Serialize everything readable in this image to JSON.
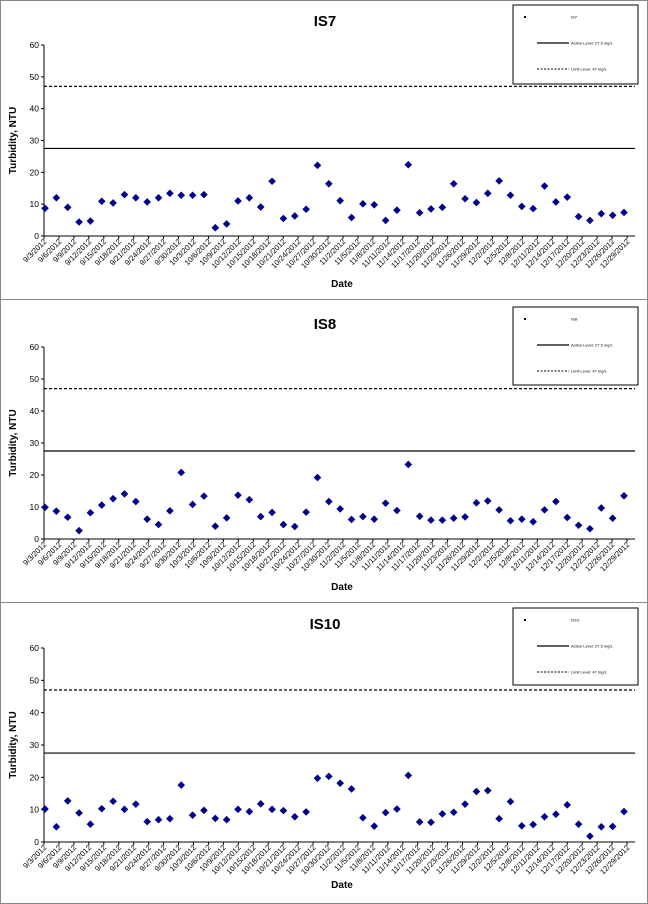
{
  "chart_data": [
    {
      "type": "scatter",
      "title": "IS7",
      "xlabel": "Date",
      "ylabel": "Turbidity, NTU",
      "ylim": [
        0,
        60
      ],
      "yticks": [
        0,
        10,
        20,
        30,
        40,
        50,
        60
      ],
      "x_tick_labels": [
        "9/3/2012",
        "9/6/2012",
        "9/9/2012",
        "9/12/2012",
        "9/15/2012",
        "9/18/2012",
        "9/21/2012",
        "9/24/2012",
        "9/27/2012",
        "9/30/2012",
        "10/3/2012",
        "10/6/2012",
        "10/9/2012",
        "10/12/2012",
        "10/15/2012",
        "10/18/2012",
        "10/21/2012",
        "10/24/2012",
        "10/27/2012",
        "10/30/2012",
        "11/2/2012",
        "11/5/2012",
        "11/8/2012",
        "11/11/2012",
        "11/14/2012",
        "11/17/2012",
        "11/20/2012",
        "11/23/2012",
        "11/26/2012",
        "11/29/2012",
        "12/2/2012",
        "12/5/2012",
        "12/8/2012",
        "12/11/2012",
        "12/14/2012",
        "12/17/2012",
        "12/20/2012",
        "12/23/2012",
        "12/26/2012",
        "12/29/2012"
      ],
      "series": [
        {
          "name": "IS7",
          "marker": "diamond",
          "color": "#00008B",
          "points": [
            [
              0,
              8.7
            ],
            [
              1,
              12
            ],
            [
              2,
              9
            ],
            [
              3,
              4.4
            ],
            [
              4,
              4.7
            ],
            [
              5,
              10.9
            ],
            [
              6,
              10.4
            ],
            [
              7,
              13
            ],
            [
              8,
              12
            ],
            [
              9,
              10.7
            ],
            [
              10,
              12
            ],
            [
              11,
              13.4
            ],
            [
              12,
              12.8
            ],
            [
              13,
              12.8
            ],
            [
              14,
              13
            ],
            [
              15,
              2.6
            ],
            [
              16,
              3.8
            ],
            [
              17,
              11
            ],
            [
              18,
              12
            ],
            [
              19,
              9.1
            ],
            [
              20,
              17.2
            ],
            [
              21,
              5.5
            ],
            [
              22,
              6.3
            ],
            [
              23,
              8.4
            ],
            [
              24,
              22.2
            ],
            [
              25,
              16.4
            ],
            [
              26,
              11.1
            ],
            [
              27,
              5.8
            ],
            [
              28,
              10.1
            ],
            [
              29,
              9.8
            ],
            [
              30,
              4.9
            ],
            [
              31,
              8.1
            ],
            [
              32,
              22.4
            ],
            [
              33,
              7.3
            ],
            [
              34,
              8.5
            ],
            [
              35,
              9
            ],
            [
              36,
              16.4
            ],
            [
              37,
              11.7
            ],
            [
              38,
              10.5
            ],
            [
              39,
              13.4
            ],
            [
              40,
              17.3
            ],
            [
              41,
              12.8
            ],
            [
              42,
              9.3
            ],
            [
              43,
              8.6
            ],
            [
              44,
              15.7
            ],
            [
              45,
              10.7
            ],
            [
              46,
              12.2
            ],
            [
              47,
              6.1
            ],
            [
              48,
              4.9
            ],
            [
              49,
              7
            ],
            [
              50,
              6.5
            ],
            [
              51,
              7.4
            ]
          ]
        }
      ],
      "reference_lines": [
        {
          "name": "Action Level: 27.5 mg/L",
          "y": 27.5,
          "style": "solid"
        },
        {
          "name": "Limit Level: 47 mg/L",
          "y": 47,
          "style": "dashed"
        }
      ],
      "grid": false,
      "legend": "top-right"
    },
    {
      "type": "scatter",
      "title": "IS8",
      "xlabel": "Date",
      "ylabel": "Turbidity, NTU",
      "ylim": [
        0,
        60
      ],
      "yticks": [
        0,
        10,
        20,
        30,
        40,
        50,
        60
      ],
      "x_tick_labels": [
        "9/3/2012",
        "9/6/2012",
        "9/9/2012",
        "9/12/2012",
        "9/15/2012",
        "9/18/2012",
        "9/21/2012",
        "9/24/2012",
        "9/27/2012",
        "9/30/2012",
        "10/3/2012",
        "10/6/2012",
        "10/9/2012",
        "10/12/2012",
        "10/15/2012",
        "10/18/2012",
        "10/21/2012",
        "10/24/2012",
        "10/27/2012",
        "10/30/2012",
        "11/2/2012",
        "11/5/2012",
        "11/8/2012",
        "11/11/2012",
        "11/14/2012",
        "11/17/2012",
        "11/20/2012",
        "11/23/2012",
        "11/26/2012",
        "11/29/2012",
        "12/2/2012",
        "12/5/2012",
        "12/8/2012",
        "12/11/2012",
        "12/14/2012",
        "12/17/2012",
        "12/20/2012",
        "12/23/2012",
        "12/26/2012",
        "12/29/2012"
      ],
      "series": [
        {
          "name": "IS8",
          "marker": "diamond",
          "color": "#00008B",
          "points": [
            [
              0,
              9.9
            ],
            [
              1,
              8.7
            ],
            [
              2,
              6.8
            ],
            [
              3,
              2.6
            ],
            [
              4,
              8.2
            ],
            [
              5,
              10.6
            ],
            [
              6,
              12.6
            ],
            [
              7,
              14.1
            ],
            [
              8,
              11.7
            ],
            [
              9,
              6.2
            ],
            [
              10,
              4.5
            ],
            [
              11,
              8.8
            ],
            [
              12,
              20.8
            ],
            [
              13,
              10.8
            ],
            [
              14,
              13.4
            ],
            [
              15,
              4
            ],
            [
              16,
              6.6
            ],
            [
              17,
              13.7
            ],
            [
              18,
              12.3
            ],
            [
              19,
              7
            ],
            [
              20,
              8.3
            ],
            [
              21,
              4.5
            ],
            [
              22,
              3.9
            ],
            [
              23,
              8.4
            ],
            [
              24,
              19.2
            ],
            [
              25,
              11.7
            ],
            [
              26,
              9.4
            ],
            [
              27,
              6.1
            ],
            [
              28,
              7
            ],
            [
              29,
              6.2
            ],
            [
              30,
              11.2
            ],
            [
              31,
              8.9
            ],
            [
              32,
              23.3
            ],
            [
              33,
              7.1
            ],
            [
              34,
              5.9
            ],
            [
              35,
              5.9
            ],
            [
              36,
              6.5
            ],
            [
              37,
              6.9
            ],
            [
              38,
              11.3
            ],
            [
              39,
              11.9
            ],
            [
              40,
              9.1
            ],
            [
              41,
              5.7
            ],
            [
              42,
              6.2
            ],
            [
              43,
              5.4
            ],
            [
              44,
              9.1
            ],
            [
              45,
              11.7
            ],
            [
              46,
              6.7
            ],
            [
              47,
              4.3
            ],
            [
              48,
              3.2
            ],
            [
              49,
              9.7
            ],
            [
              50,
              6.5
            ],
            [
              51,
              13.5
            ]
          ]
        }
      ],
      "reference_lines": [
        {
          "name": "Action Level: 27.5 mg/L",
          "y": 27.5,
          "style": "solid"
        },
        {
          "name": "Limit Level: 47 mg/L",
          "y": 47,
          "style": "dashed"
        }
      ],
      "grid": false,
      "legend": "top-right"
    },
    {
      "type": "scatter",
      "title": "IS10",
      "xlabel": "Date",
      "ylabel": "Turbidity, NTU",
      "ylim": [
        0,
        60
      ],
      "yticks": [
        0,
        10,
        20,
        30,
        40,
        50,
        60
      ],
      "x_tick_labels": [
        "9/3/2012",
        "9/6/2012",
        "9/9/2012",
        "9/12/2012",
        "9/15/2012",
        "9/18/2012",
        "9/21/2012",
        "9/24/2012",
        "9/27/2012",
        "9/30/2012",
        "10/3/2012",
        "10/6/2012",
        "10/9/2012",
        "10/12/2012",
        "10/15/2012",
        "10/18/2012",
        "10/21/2012",
        "10/24/2012",
        "10/27/2012",
        "10/30/2012",
        "11/2/2012",
        "11/5/2012",
        "11/8/2012",
        "11/11/2012",
        "11/14/2012",
        "11/17/2012",
        "11/20/2012",
        "11/23/2012",
        "11/26/2012",
        "11/29/2012",
        "12/2/2012",
        "12/5/2012",
        "12/8/2012",
        "12/11/2012",
        "12/14/2012",
        "12/17/2012",
        "12/20/2012",
        "12/23/2012",
        "12/26/2012",
        "12/29/2012"
      ],
      "series": [
        {
          "name": "IS10",
          "marker": "diamond",
          "color": "#00008B",
          "points": [
            [
              0,
              10.2
            ],
            [
              1,
              4.7
            ],
            [
              2,
              12.7
            ],
            [
              3,
              9
            ],
            [
              4,
              5.5
            ],
            [
              5,
              10.3
            ],
            [
              6,
              12.6
            ],
            [
              7,
              10.1
            ],
            [
              8,
              11.7
            ],
            [
              9,
              6.3
            ],
            [
              10,
              6.9
            ],
            [
              11,
              7.2
            ],
            [
              12,
              17.6
            ],
            [
              13,
              8.3
            ],
            [
              14,
              9.8
            ],
            [
              15,
              7.3
            ],
            [
              16,
              6.9
            ],
            [
              17,
              10.1
            ],
            [
              18,
              9.4
            ],
            [
              19,
              11.8
            ],
            [
              20,
              10.1
            ],
            [
              21,
              9.7
            ],
            [
              22,
              7.8
            ],
            [
              23,
              9.3
            ],
            [
              24,
              19.7
            ],
            [
              25,
              20.3
            ],
            [
              26,
              18.2
            ],
            [
              27,
              16.4
            ],
            [
              28,
              7.5
            ],
            [
              29,
              4.9
            ],
            [
              30,
              9.1
            ],
            [
              31,
              10.2
            ],
            [
              32,
              20.6
            ],
            [
              33,
              6.2
            ],
            [
              34,
              6.1
            ],
            [
              35,
              8.7
            ],
            [
              36,
              9.2
            ],
            [
              37,
              11.7
            ],
            [
              38,
              15.6
            ],
            [
              39,
              15.9
            ],
            [
              40,
              7.2
            ],
            [
              41,
              12.5
            ],
            [
              42,
              5
            ],
            [
              43,
              5.4
            ],
            [
              44,
              7.8
            ],
            [
              45,
              8.6
            ],
            [
              46,
              11.5
            ],
            [
              47,
              5.5
            ],
            [
              48,
              1.8
            ],
            [
              49,
              4.7
            ],
            [
              50,
              4.8
            ],
            [
              51,
              9.4
            ]
          ]
        }
      ],
      "reference_lines": [
        {
          "name": "Action Level: 27.5 mg/L",
          "y": 27.5,
          "style": "solid"
        },
        {
          "name": "Limit Level: 47 mg/L",
          "y": 47,
          "style": "dashed"
        }
      ],
      "grid": false,
      "legend": "top-right"
    }
  ]
}
